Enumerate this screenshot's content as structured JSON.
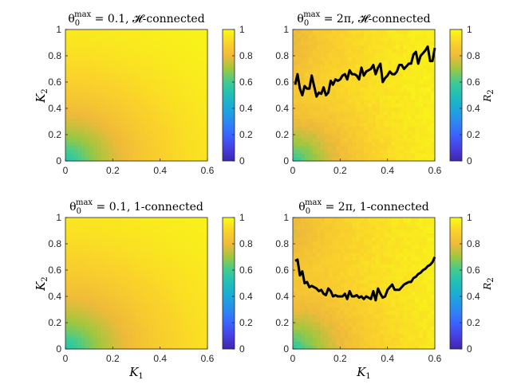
{
  "chart_data": [
    {
      "type": "heatmap",
      "title_prefix": "θ",
      "title_sub": "0",
      "title_sup": "max",
      "title_rest": " = 0.1, 𝓗-connected",
      "xlabel": "",
      "ylabel": {
        "main": "K",
        "sub": "2"
      },
      "xlim": [
        0,
        0.6
      ],
      "ylim": [
        0,
        1
      ],
      "xticks": [
        "0",
        "0.2",
        "0.4",
        "0.6"
      ],
      "yticks": [
        "0",
        "0.2",
        "0.4",
        "0.6",
        "0.8",
        "1"
      ],
      "field": {
        "radius_scale": 0.28,
        "min_value": 0.52,
        "noise": 0
      },
      "colorbar": {
        "range": [
          0,
          1
        ],
        "ticks": [
          "0",
          "0.2",
          "0.4",
          "0.6",
          "0.8",
          "1"
        ],
        "label": ""
      },
      "curve": null
    },
    {
      "type": "heatmap",
      "title_prefix": "θ",
      "title_sub": "0",
      "title_sup": "max",
      "title_rest": " = 2π, 𝓗-connected",
      "xlabel": "",
      "ylabel": null,
      "xlim": [
        0,
        0.6
      ],
      "ylim": [
        0,
        1
      ],
      "xticks": [
        "0",
        "0.2",
        "0.4",
        "0.6"
      ],
      "yticks": [
        "0",
        "0.2",
        "0.4",
        "0.6",
        "0.8",
        "1"
      ],
      "field": {
        "radius_scale": 0.24,
        "min_value": 0.55,
        "noise": 0.03
      },
      "colorbar": {
        "range": [
          0,
          1
        ],
        "ticks": [
          "0",
          "0.2",
          "0.4",
          "0.6",
          "0.8",
          "1"
        ],
        "label": {
          "main": "R",
          "sub": "2"
        }
      },
      "curve": {
        "x": [
          0.01,
          0.02,
          0.03,
          0.04,
          0.05,
          0.06,
          0.07,
          0.08,
          0.09,
          0.1,
          0.11,
          0.12,
          0.13,
          0.14,
          0.15,
          0.16,
          0.17,
          0.18,
          0.19,
          0.2,
          0.21,
          0.22,
          0.23,
          0.24,
          0.25,
          0.26,
          0.27,
          0.28,
          0.29,
          0.3,
          0.31,
          0.32,
          0.33,
          0.34,
          0.35,
          0.36,
          0.37,
          0.38,
          0.39,
          0.4,
          0.41,
          0.42,
          0.43,
          0.44,
          0.45,
          0.46,
          0.47,
          0.48,
          0.49,
          0.5,
          0.51,
          0.52,
          0.53,
          0.54,
          0.55,
          0.56,
          0.57,
          0.58,
          0.59,
          0.6
        ],
        "y": [
          0.58,
          0.66,
          0.55,
          0.5,
          0.57,
          0.55,
          0.55,
          0.65,
          0.57,
          0.49,
          0.52,
          0.51,
          0.56,
          0.5,
          0.52,
          0.61,
          0.58,
          0.62,
          0.61,
          0.62,
          0.65,
          0.66,
          0.62,
          0.69,
          0.66,
          0.66,
          0.65,
          0.62,
          0.71,
          0.65,
          0.68,
          0.69,
          0.7,
          0.73,
          0.66,
          0.71,
          0.74,
          0.6,
          0.63,
          0.65,
          0.68,
          0.66,
          0.66,
          0.68,
          0.73,
          0.73,
          0.7,
          0.72,
          0.74,
          0.74,
          0.81,
          0.83,
          0.74,
          0.8,
          0.82,
          0.84,
          0.87,
          0.76,
          0.76,
          0.86
        ]
      }
    },
    {
      "type": "heatmap",
      "title_prefix": "θ",
      "title_sub": "0",
      "title_sup": "max",
      "title_rest": " = 0.1, 1-connected",
      "xlabel": {
        "main": "K",
        "sub": "1"
      },
      "ylabel": {
        "main": "K",
        "sub": "2"
      },
      "xlim": [
        0,
        0.6
      ],
      "ylim": [
        0,
        1
      ],
      "xticks": [
        "0",
        "0.2",
        "0.4",
        "0.6"
      ],
      "yticks": [
        "0",
        "0.2",
        "0.4",
        "0.6",
        "0.8",
        "1"
      ],
      "field": {
        "radius_scale": 0.3,
        "min_value": 0.52,
        "noise": 0
      },
      "colorbar": {
        "range": [
          0,
          1
        ],
        "ticks": [
          "0",
          "0.2",
          "0.4",
          "0.6",
          "0.8",
          "1"
        ],
        "label": ""
      },
      "curve": null
    },
    {
      "type": "heatmap",
      "title_prefix": "θ",
      "title_sub": "0",
      "title_sup": "max",
      "title_rest": " = 2π, 1-connected",
      "xlabel": {
        "main": "K",
        "sub": "1"
      },
      "ylabel": null,
      "xlim": [
        0,
        0.6
      ],
      "ylim": [
        0,
        1
      ],
      "xticks": [
        "0",
        "0.2",
        "0.4",
        "0.6"
      ],
      "yticks": [
        "0",
        "0.2",
        "0.4",
        "0.6",
        "0.8",
        "1"
      ],
      "field": {
        "radius_scale": 0.26,
        "min_value": 0.55,
        "noise": 0.03
      },
      "colorbar": {
        "range": [
          0,
          1
        ],
        "ticks": [
          "0",
          "0.2",
          "0.4",
          "0.6",
          "0.8",
          "1"
        ],
        "label": {
          "main": "R",
          "sub": "2"
        }
      },
      "curve": {
        "x": [
          0.01,
          0.02,
          0.03,
          0.04,
          0.05,
          0.06,
          0.07,
          0.08,
          0.09,
          0.1,
          0.11,
          0.12,
          0.13,
          0.14,
          0.15,
          0.16,
          0.17,
          0.18,
          0.19,
          0.2,
          0.21,
          0.22,
          0.23,
          0.24,
          0.25,
          0.26,
          0.27,
          0.28,
          0.29,
          0.3,
          0.31,
          0.32,
          0.33,
          0.34,
          0.35,
          0.36,
          0.37,
          0.38,
          0.39,
          0.4,
          0.41,
          0.42,
          0.43,
          0.44,
          0.45,
          0.46,
          0.47,
          0.48,
          0.49,
          0.5,
          0.51,
          0.52,
          0.53,
          0.54,
          0.55,
          0.56,
          0.57,
          0.58,
          0.59,
          0.6
        ],
        "y": [
          0.67,
          0.68,
          0.56,
          0.59,
          0.5,
          0.51,
          0.47,
          0.48,
          0.47,
          0.46,
          0.44,
          0.45,
          0.42,
          0.41,
          0.46,
          0.44,
          0.4,
          0.41,
          0.4,
          0.4,
          0.4,
          0.42,
          0.38,
          0.44,
          0.4,
          0.4,
          0.41,
          0.39,
          0.4,
          0.38,
          0.4,
          0.39,
          0.38,
          0.44,
          0.37,
          0.46,
          0.42,
          0.39,
          0.4,
          0.45,
          0.47,
          0.49,
          0.45,
          0.45,
          0.45,
          0.47,
          0.49,
          0.5,
          0.51,
          0.51,
          0.54,
          0.55,
          0.57,
          0.58,
          0.6,
          0.61,
          0.63,
          0.64,
          0.66,
          0.7
        ]
      }
    }
  ]
}
